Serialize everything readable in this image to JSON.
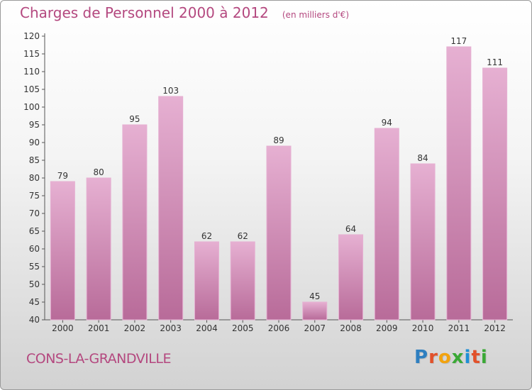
{
  "title": "Charges de Personnel 2000 à 2012",
  "subtitle": "(en milliers d'€)",
  "footer": {
    "city": "CONS-LA-GRANDVILLE"
  },
  "brand": {
    "letters": [
      "P",
      "r",
      "o",
      "x",
      "i",
      "t",
      "i"
    ],
    "colors": [
      "#2e7fc0",
      "#e2512a",
      "#f2a30f",
      "#3aa935",
      "#1f8fd6",
      "#e2512a",
      "#3aa935"
    ]
  },
  "colors": {
    "bar": "#d48ab6",
    "bar_light": "#e6b0d2",
    "bar_dark": "#b86b99",
    "text": "#b4487f",
    "grid": "#cccccc"
  },
  "chart_data": {
    "type": "bar",
    "categories": [
      "2000",
      "2001",
      "2002",
      "2003",
      "2004",
      "2005",
      "2006",
      "2007",
      "2008",
      "2009",
      "2010",
      "2011",
      "2012"
    ],
    "values": [
      79,
      80,
      95,
      103,
      62,
      62,
      89,
      45,
      64,
      94,
      84,
      117,
      111
    ],
    "ylim": [
      40,
      120
    ],
    "yticks": [
      40,
      45,
      50,
      55,
      60,
      65,
      70,
      75,
      80,
      85,
      90,
      95,
      100,
      105,
      110,
      115,
      120
    ],
    "grid": false,
    "data_labels": true
  }
}
